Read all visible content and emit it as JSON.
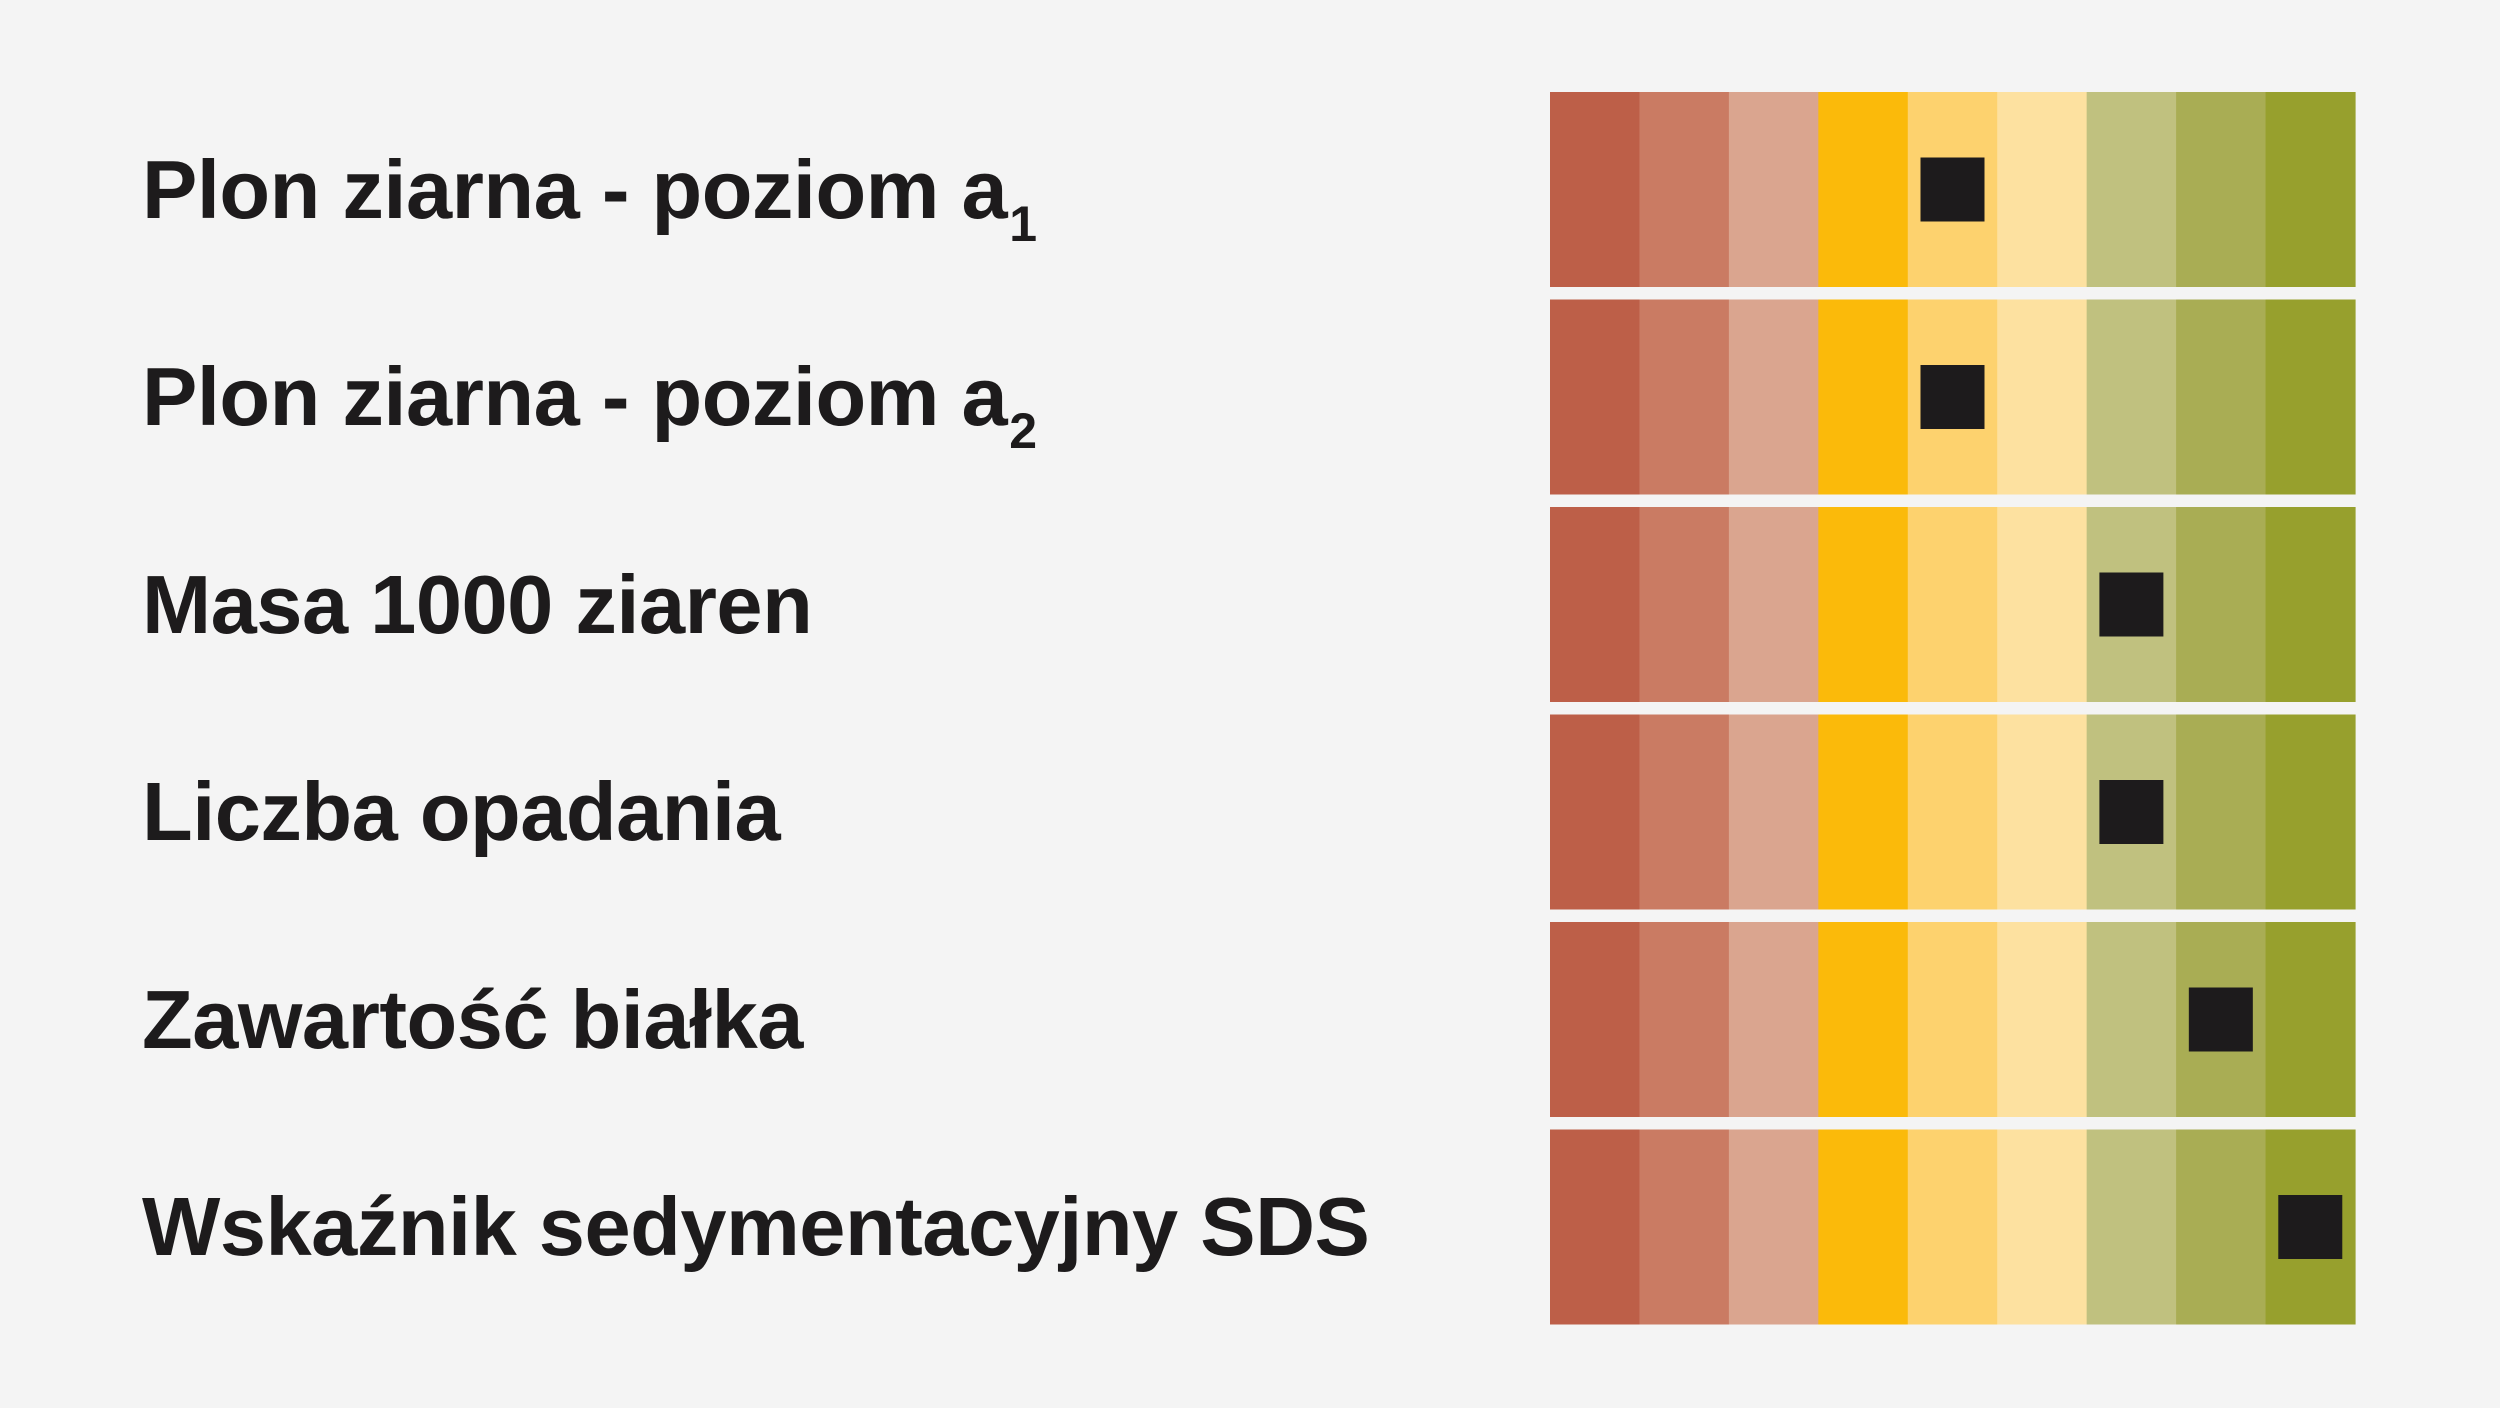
{
  "chart_data": {
    "type": "heatmap",
    "scale_steps": 9,
    "scale_colors": [
      "#bd5f48",
      "#ca7b63",
      "#daa58f",
      "#fbba0a",
      "#fdd26e",
      "#fde1a0",
      "#c0c17f",
      "#a9ad54",
      "#97a02d"
    ],
    "marker_color": "#1d1b1c",
    "rows": [
      {
        "label": "Plon ziarna - poziom a",
        "subscript": "1",
        "value": 5
      },
      {
        "label": "Plon ziarna - poziom a",
        "subscript": "2",
        "value": 5
      },
      {
        "label": "Masa 1000 ziaren",
        "subscript": "",
        "value": 7
      },
      {
        "label": "Liczba opadania",
        "subscript": "",
        "value": 7
      },
      {
        "label": "Zawartość białka",
        "subscript": "",
        "value": 8
      },
      {
        "label": "Wskaźnik sedymentacyjny SDS",
        "subscript": "",
        "value": 9
      }
    ]
  }
}
